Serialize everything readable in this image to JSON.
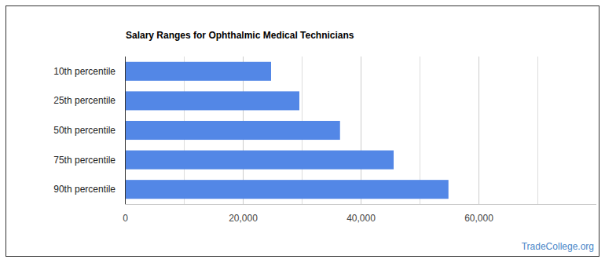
{
  "chart_data": {
    "type": "bar",
    "title": "Salary Ranges for Ophthalmic Medical Technicians",
    "orientation": "horizontal",
    "categories": [
      "10th percentile",
      "25th percentile",
      "50th percentile",
      "75th percentile",
      "90th percentile"
    ],
    "values": [
      24800,
      29600,
      36500,
      45600,
      54900
    ],
    "color": "#5387e6",
    "xlim": [
      0,
      80000
    ],
    "xticks": [
      0,
      {
        "value": 20000,
        "label": "20,000"
      },
      {
        "value": 40000,
        "label": "40,000"
      },
      {
        "value": 60000,
        "label": "60,000"
      }
    ],
    "grid": true,
    "annotations": [
      "TradeCollege.org"
    ]
  }
}
